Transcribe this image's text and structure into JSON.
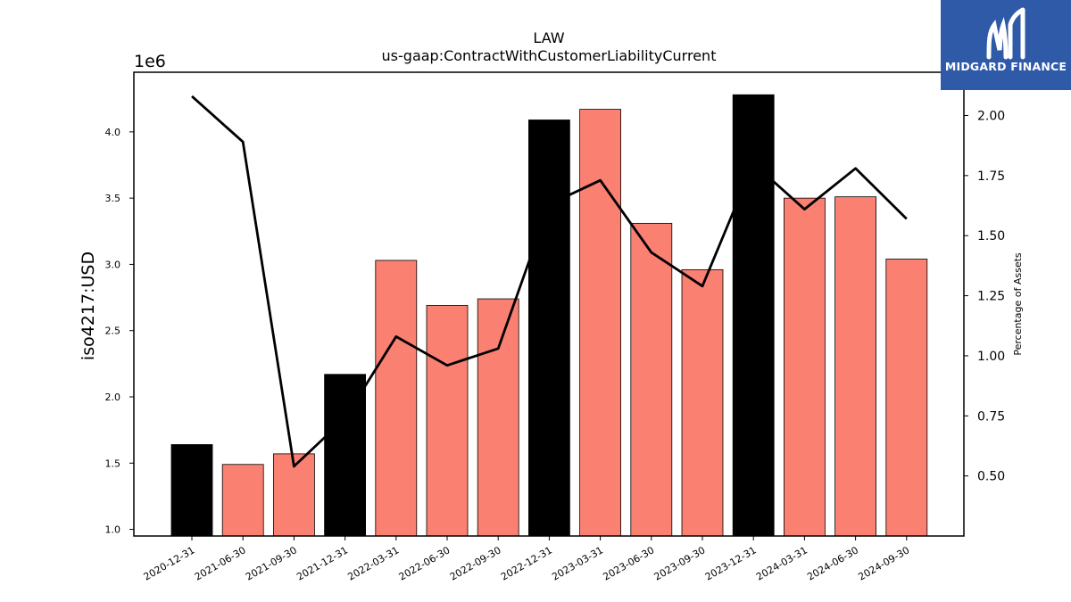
{
  "chart_data": {
    "type": "bar",
    "title": "LAW",
    "subtitle": "us-gaap:ContractWithCustomerLiabilityCurrent",
    "ylabel": "iso4217:USD",
    "y_offset_label": "1e6",
    "y2label": "Percentage of Assets",
    "categories": [
      "2020-12-31",
      "2021-06-30",
      "2021-09-30",
      "2021-12-31",
      "2022-03-31",
      "2022-06-30",
      "2022-09-30",
      "2022-12-31",
      "2023-03-31",
      "2023-06-30",
      "2023-09-30",
      "2023-12-31",
      "2024-03-31",
      "2024-06-30",
      "2024-09-30"
    ],
    "series": [
      {
        "kind": "bar",
        "values": [
          1640000,
          1490000,
          1570000,
          2170000,
          3030000,
          2690000,
          2740000,
          4090000,
          4170000,
          3310000,
          2960000,
          4280000,
          3500000,
          3510000,
          3040000
        ],
        "highlight": [
          true,
          false,
          false,
          true,
          false,
          false,
          false,
          true,
          false,
          false,
          false,
          true,
          false,
          false,
          false
        ],
        "color": "#fa8072",
        "highlight_color": "#000000"
      },
      {
        "kind": "line",
        "axis": "right",
        "values": [
          2.08,
          1.89,
          0.54,
          0.74,
          1.08,
          0.96,
          1.03,
          1.63,
          1.73,
          1.43,
          1.29,
          1.8,
          1.61,
          1.78,
          1.57
        ],
        "color": "#000000"
      }
    ],
    "ylim": [
      950000,
      4450000
    ],
    "y_ticks": [
      1.0,
      1.5,
      2.0,
      2.5,
      3.0,
      3.5,
      4.0
    ],
    "y_tick_labels": [
      "1.0",
      "1.5",
      "2.0",
      "2.5",
      "3.0",
      "3.5",
      "4.0"
    ],
    "y2lim": [
      0.25,
      2.18
    ],
    "y2_ticks": [
      0.5,
      0.75,
      1.0,
      1.25,
      1.5,
      1.75,
      2.0
    ],
    "y2_tick_labels": [
      "0.50",
      "0.75",
      "1.00",
      "1.25",
      "1.50",
      "1.75",
      "2.00"
    ],
    "grid": false,
    "legend": "none"
  },
  "logo": {
    "text": "MIDGARD FINANCE",
    "icon": "midgard-logo-icon",
    "color": "#2f5aa8"
  }
}
